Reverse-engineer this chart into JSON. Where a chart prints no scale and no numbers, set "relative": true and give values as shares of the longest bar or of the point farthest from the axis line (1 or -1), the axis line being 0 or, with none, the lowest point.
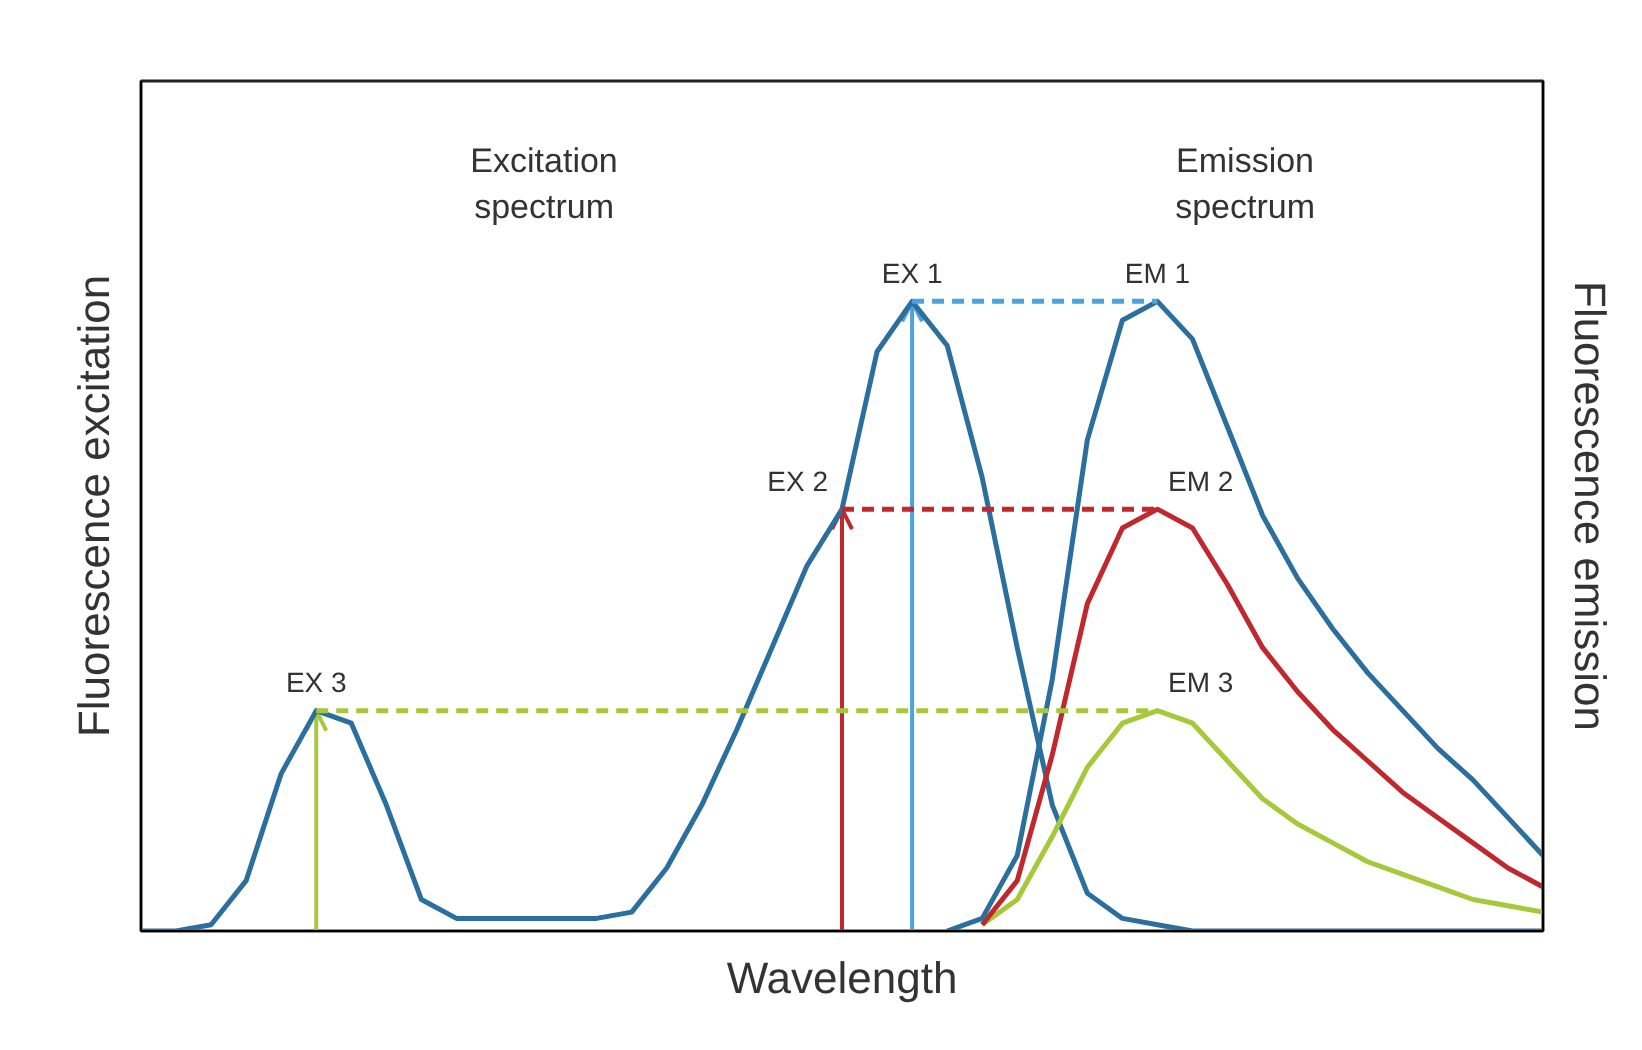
{
  "chart_data": {
    "type": "line",
    "relative": true,
    "tick_labels": false,
    "grid": false,
    "xlabel": "Wavelength",
    "ylabel": "Fluorescence excitation",
    "y2label": "Fluorescence emission",
    "categories": [
      null,
      null,
      null,
      null,
      null,
      null,
      null,
      null,
      null,
      null,
      null,
      null,
      null,
      null,
      null,
      null,
      null,
      null,
      null,
      null,
      null,
      null,
      null,
      null,
      null,
      null,
      null,
      null,
      null,
      null,
      null,
      null,
      null,
      null,
      null,
      null,
      null,
      null,
      null,
      null,
      null
    ],
    "series": [
      {
        "color": "#2b6f9e",
        "values": [
          0,
          0,
          0.01,
          0.08,
          0.25,
          0.35,
          0.33,
          0.2,
          0.05,
          0.02,
          0.02,
          0.02,
          0.02,
          0.02,
          0.03,
          0.1,
          0.2,
          0.32,
          0.45,
          0.58,
          0.67,
          0.92,
          1.0,
          0.93,
          0.72,
          0.45,
          0.2,
          0.06,
          0.02,
          0.01,
          0,
          0,
          0,
          0,
          0,
          0,
          0,
          0,
          0,
          0,
          0
        ]
      },
      {
        "color": "#a8c83c",
        "values": [
          null,
          null,
          null,
          null,
          null,
          null,
          null,
          null,
          null,
          null,
          null,
          null,
          null,
          null,
          null,
          null,
          null,
          null,
          null,
          null,
          null,
          null,
          null,
          null,
          0.01,
          0.05,
          0.15,
          0.26,
          0.33,
          0.35,
          0.33,
          0.27,
          0.21,
          0.17,
          0.14,
          0.11,
          0.09,
          0.07,
          0.05,
          0.04,
          0.03
        ]
      },
      {
        "color": "#c0282d",
        "values": [
          null,
          null,
          null,
          null,
          null,
          null,
          null,
          null,
          null,
          null,
          null,
          null,
          null,
          null,
          null,
          null,
          null,
          null,
          null,
          null,
          null,
          null,
          null,
          null,
          0.01,
          0.08,
          0.28,
          0.52,
          0.64,
          0.67,
          0.64,
          0.55,
          0.45,
          0.38,
          0.32,
          0.27,
          0.22,
          0.18,
          0.14,
          0.1,
          0.07
        ]
      },
      {
        "color": "#2b6f9e",
        "values": [
          null,
          null,
          null,
          null,
          null,
          null,
          null,
          null,
          null,
          null,
          null,
          null,
          null,
          null,
          null,
          null,
          null,
          null,
          null,
          null,
          null,
          null,
          null,
          0,
          0.02,
          0.12,
          0.4,
          0.78,
          0.97,
          1.0,
          0.94,
          0.8,
          0.66,
          0.56,
          0.48,
          0.41,
          0.35,
          0.29,
          0.24,
          0.18,
          0.12
        ]
      },
      {
        "color": "#4aa3df",
        "line_style": "dashed",
        "values": [
          null,
          null,
          null,
          null,
          null,
          null,
          null,
          null,
          null,
          null,
          null,
          null,
          null,
          null,
          null,
          null,
          null,
          null,
          null,
          null,
          null,
          null,
          1.0,
          1.0,
          1.0,
          1.0,
          1.0,
          1.0,
          1.0,
          1.0,
          null,
          null,
          null,
          null,
          null,
          null,
          null,
          null,
          null,
          null,
          null
        ]
      },
      {
        "color": "#c0282d",
        "line_style": "dashed",
        "values": [
          null,
          null,
          null,
          null,
          null,
          null,
          null,
          null,
          null,
          null,
          null,
          null,
          null,
          null,
          null,
          null,
          null,
          null,
          null,
          null,
          0.67,
          0.67,
          0.67,
          0.67,
          0.67,
          0.67,
          0.67,
          0.67,
          0.67,
          0.67,
          null,
          null,
          null,
          null,
          null,
          null,
          null,
          null,
          null,
          null,
          null
        ]
      },
      {
        "color": "#a8c83c",
        "line_style": "dashed",
        "values": [
          null,
          null,
          null,
          null,
          null,
          0.35,
          0.35,
          0.35,
          0.35,
          0.35,
          0.35,
          0.35,
          0.35,
          0.35,
          0.35,
          0.35,
          0.35,
          0.35,
          0.35,
          0.35,
          0.35,
          0.35,
          0.35,
          0.35,
          0.35,
          0.35,
          0.35,
          0.35,
          0.35,
          0.35,
          null,
          null,
          null,
          null,
          null,
          null,
          null,
          null,
          null,
          null,
          null
        ]
      }
    ],
    "annotations": [
      "Excitation\nspectrum",
      "Emission\nspectrum",
      "EX 1",
      "EX 2",
      "EX 3",
      "EM 1",
      "EM 2",
      "EM 3"
    ]
  }
}
